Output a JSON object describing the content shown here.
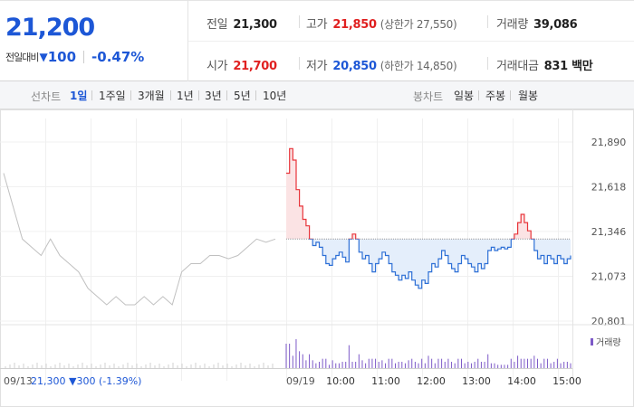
{
  "summary": {
    "price": "21,200",
    "change_label": "전일대비",
    "change_arrow": "▼",
    "change_value": "100",
    "change_rate": "-0.47%"
  },
  "stats": {
    "prev_close_label": "전일",
    "prev_close": "21,300",
    "high_label": "고가",
    "high": "21,850",
    "upper_limit": "(상한가 27,550)",
    "volume_label": "거래량",
    "volume": "39,086",
    "open_label": "시가",
    "open": "21,700",
    "low_label": "저가",
    "low": "20,850",
    "lower_limit": "(하한가 14,850)",
    "amount_label": "거래대금",
    "amount": "831 백만"
  },
  "tabs": {
    "line_label": "선차트",
    "line_items": [
      "1일",
      "1주일",
      "3개월",
      "1년",
      "3년",
      "5년",
      "10년"
    ],
    "active_index": 0,
    "candle_label": "봉차트",
    "candle_items": [
      "일봉",
      "주봉",
      "월봉"
    ]
  },
  "colors": {
    "up": "#e8343a",
    "down": "#2c6fd6",
    "prev": "#c0c0c0",
    "accent": "#1d57d6"
  },
  "chart_data": {
    "type": "line",
    "y_ticks": [
      21890,
      21618,
      21346,
      21073,
      20801
    ],
    "y_tick_labels": [
      "21,890",
      "21,618",
      "21,346",
      "21,073",
      "20,801"
    ],
    "ylim": [
      20801,
      21890
    ],
    "base": 21300,
    "x_tick_labels": [
      "10:00",
      "11:00",
      "12:00",
      "13:00",
      "14:00",
      "15:00"
    ],
    "prev_day_label": "09/13",
    "prev_day_info": "21,300 ▼300 (-1.39%)",
    "today_label": "09/19",
    "volume_legend": "거래량",
    "series": [
      {
        "values": [
          21700,
          21850,
          21780,
          21600,
          21500,
          21420,
          21380,
          21300,
          21260,
          21280,
          21250,
          21200,
          21150,
          21140,
          21180,
          21200,
          21220,
          21190,
          21160,
          21300,
          21330,
          21300,
          21220,
          21180,
          21200,
          21150,
          21100,
          21150,
          21180,
          21220,
          21200,
          21150,
          21100,
          21080,
          21050,
          21080,
          21060,
          21100,
          21050,
          21020,
          21000,
          21050,
          21030,
          21100,
          21150,
          21130,
          21180,
          21230,
          21200,
          21150,
          21120,
          21100,
          21150,
          21200,
          21180,
          21150,
          21130,
          21100,
          21150,
          21120,
          21150,
          21230,
          21250,
          21230,
          21240,
          21250,
          21240,
          21250,
          21300,
          21330,
          21400,
          21450,
          21400,
          21350,
          21300,
          21230,
          21180,
          21200,
          21150,
          21200,
          21180,
          21150,
          21200,
          21180,
          21150,
          21180,
          21200
        ]
      }
    ],
    "prev_day_values": [
      21700,
      21500,
      21300,
      21250,
      21200,
      21300,
      21200,
      21150,
      21100,
      21000,
      20950,
      20900,
      20950,
      20900,
      20900,
      20950,
      20900,
      20950,
      20900,
      21100,
      21150,
      21150,
      21200,
      21200,
      21180,
      21200,
      21250,
      21300,
      21280,
      21300
    ]
  }
}
